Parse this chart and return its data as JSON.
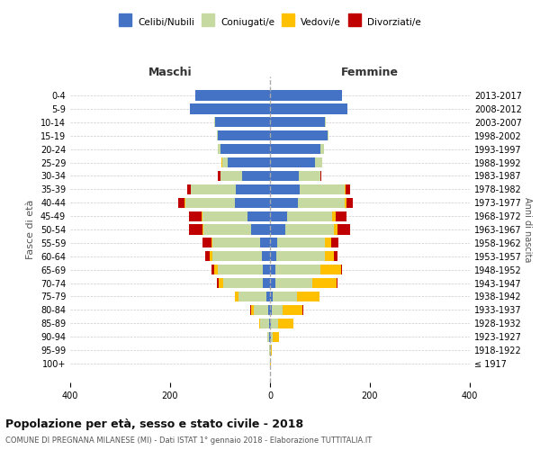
{
  "age_groups": [
    "100+",
    "95-99",
    "90-94",
    "85-89",
    "80-84",
    "75-79",
    "70-74",
    "65-69",
    "60-64",
    "55-59",
    "50-54",
    "45-49",
    "40-44",
    "35-39",
    "30-34",
    "25-29",
    "20-24",
    "15-19",
    "10-14",
    "5-9",
    "0-4"
  ],
  "birth_years": [
    "≤ 1917",
    "1918-1922",
    "1923-1927",
    "1928-1932",
    "1933-1937",
    "1938-1942",
    "1943-1947",
    "1948-1952",
    "1953-1957",
    "1958-1962",
    "1963-1967",
    "1968-1972",
    "1973-1977",
    "1978-1982",
    "1983-1987",
    "1988-1992",
    "1993-1997",
    "1998-2002",
    "2003-2007",
    "2008-2012",
    "2013-2017"
  ],
  "maschi": {
    "celibi": [
      0,
      0,
      1,
      2,
      4,
      8,
      14,
      14,
      16,
      20,
      38,
      45,
      70,
      68,
      55,
      85,
      100,
      105,
      110,
      160,
      150
    ],
    "coniugati": [
      0,
      1,
      5,
      18,
      28,
      55,
      80,
      90,
      100,
      95,
      95,
      90,
      100,
      90,
      45,
      10,
      5,
      2,
      1,
      0,
      0
    ],
    "vedovi": [
      0,
      0,
      0,
      2,
      5,
      8,
      9,
      8,
      5,
      3,
      2,
      2,
      2,
      0,
      0,
      2,
      0,
      0,
      0,
      0,
      0
    ],
    "divorziati": [
      0,
      0,
      0,
      0,
      2,
      0,
      3,
      5,
      8,
      18,
      28,
      25,
      12,
      8,
      5,
      0,
      0,
      0,
      0,
      0,
      0
    ]
  },
  "femmine": {
    "nubili": [
      0,
      0,
      1,
      2,
      4,
      6,
      10,
      10,
      12,
      15,
      30,
      35,
      55,
      60,
      58,
      90,
      100,
      115,
      110,
      155,
      145
    ],
    "coniugate": [
      0,
      1,
      5,
      15,
      22,
      48,
      75,
      90,
      98,
      95,
      98,
      90,
      95,
      90,
      42,
      15,
      8,
      3,
      1,
      0,
      0
    ],
    "vedove": [
      1,
      3,
      12,
      30,
      38,
      45,
      48,
      42,
      18,
      12,
      8,
      6,
      3,
      2,
      0,
      0,
      0,
      0,
      0,
      0,
      0
    ],
    "divorziate": [
      0,
      0,
      0,
      0,
      2,
      0,
      2,
      3,
      8,
      15,
      25,
      22,
      12,
      8,
      3,
      0,
      0,
      0,
      0,
      0,
      0
    ]
  },
  "colors": {
    "celibi_nubili": "#4472c4",
    "coniugati": "#c5d9a0",
    "vedovi": "#ffc000",
    "divorziati": "#c00000"
  },
  "xlim": 400,
  "xlabel_maschi": "Maschi",
  "xlabel_femmine": "Femmine",
  "ylabel_left": "Fasce di età",
  "ylabel_right": "Anni di nascita",
  "title": "Popolazione per età, sesso e stato civile - 2018",
  "subtitle": "COMUNE DI PREGNANA MILANESE (MI) - Dati ISTAT 1° gennaio 2018 - Elaborazione TUTTITALIA.IT",
  "legend_labels": [
    "Celibi/Nubili",
    "Coniugati/e",
    "Vedovi/e",
    "Divorziati/e"
  ],
  "background_color": "#ffffff",
  "grid_color": "#cccccc"
}
